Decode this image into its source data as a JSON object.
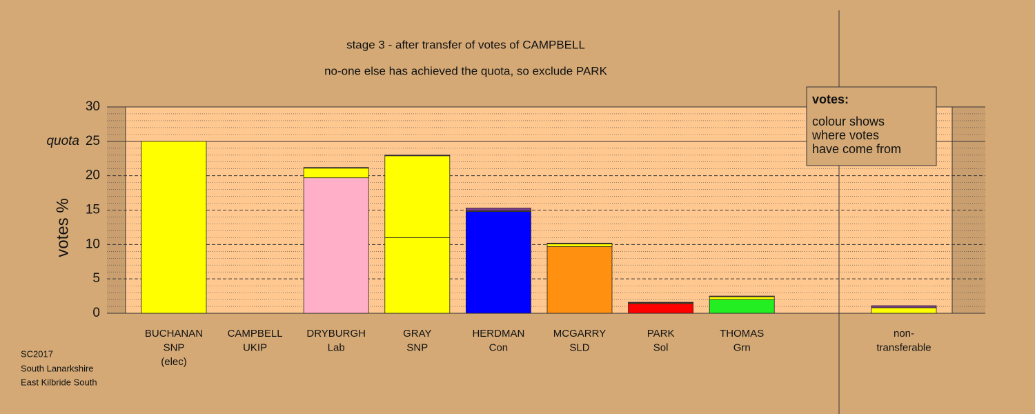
{
  "chart_data": {
    "type": "stacked-bar",
    "title": [
      "stage 3 - after transfer of votes of CAMPBELL",
      "no-one else has achieved the quota, so exclude PARK"
    ],
    "y_label": "votes %",
    "quota": 25,
    "quota_label": "quota",
    "categories": [
      [
        "BUCHANAN",
        "SNP",
        "(elec)"
      ],
      [
        "CAMPBELL",
        "UKIP"
      ],
      [
        "DRYBURGH",
        "Lab"
      ],
      [
        "GRAY",
        "SNP"
      ],
      [
        "HERDMAN",
        "Con"
      ],
      [
        "MCGARRY",
        "SLD"
      ],
      [
        "PARK",
        "Sol"
      ],
      [
        "THOMAS",
        "Grn"
      ],
      [
        "non-",
        "transferable"
      ]
    ],
    "series": [
      {
        "colors": [
          "#ffff00",
          "#7b3f8f",
          "#ffb0c8",
          "#ffff00",
          "#0000ff",
          "#ff9010",
          "#ff0000",
          "#22ee22",
          "#ffff00"
        ],
        "values": [
          25,
          0,
          19.7,
          11,
          14.8,
          9.7,
          1.4,
          2.0,
          0.8
        ]
      },
      {
        "color": "#ffff00",
        "values": [
          0,
          0,
          1.4,
          11.9,
          0.1,
          0.4,
          0.1,
          0.4,
          0
        ]
      },
      {
        "color": "#7b3f8f",
        "values": [
          0,
          0,
          0.1,
          0.1,
          0.4,
          0.1,
          0.1,
          0.1,
          0.3
        ]
      }
    ],
    "ylim": [
      0,
      30
    ],
    "yticks": [
      0,
      5,
      10,
      15,
      20,
      25,
      30
    ],
    "grid": true,
    "legend": {
      "title": "votes:",
      "lines": [
        "colour shows",
        "where votes",
        "have come from"
      ]
    },
    "footer": [
      "SC2017",
      "South Lanarkshire",
      "East Kilbride South"
    ]
  }
}
